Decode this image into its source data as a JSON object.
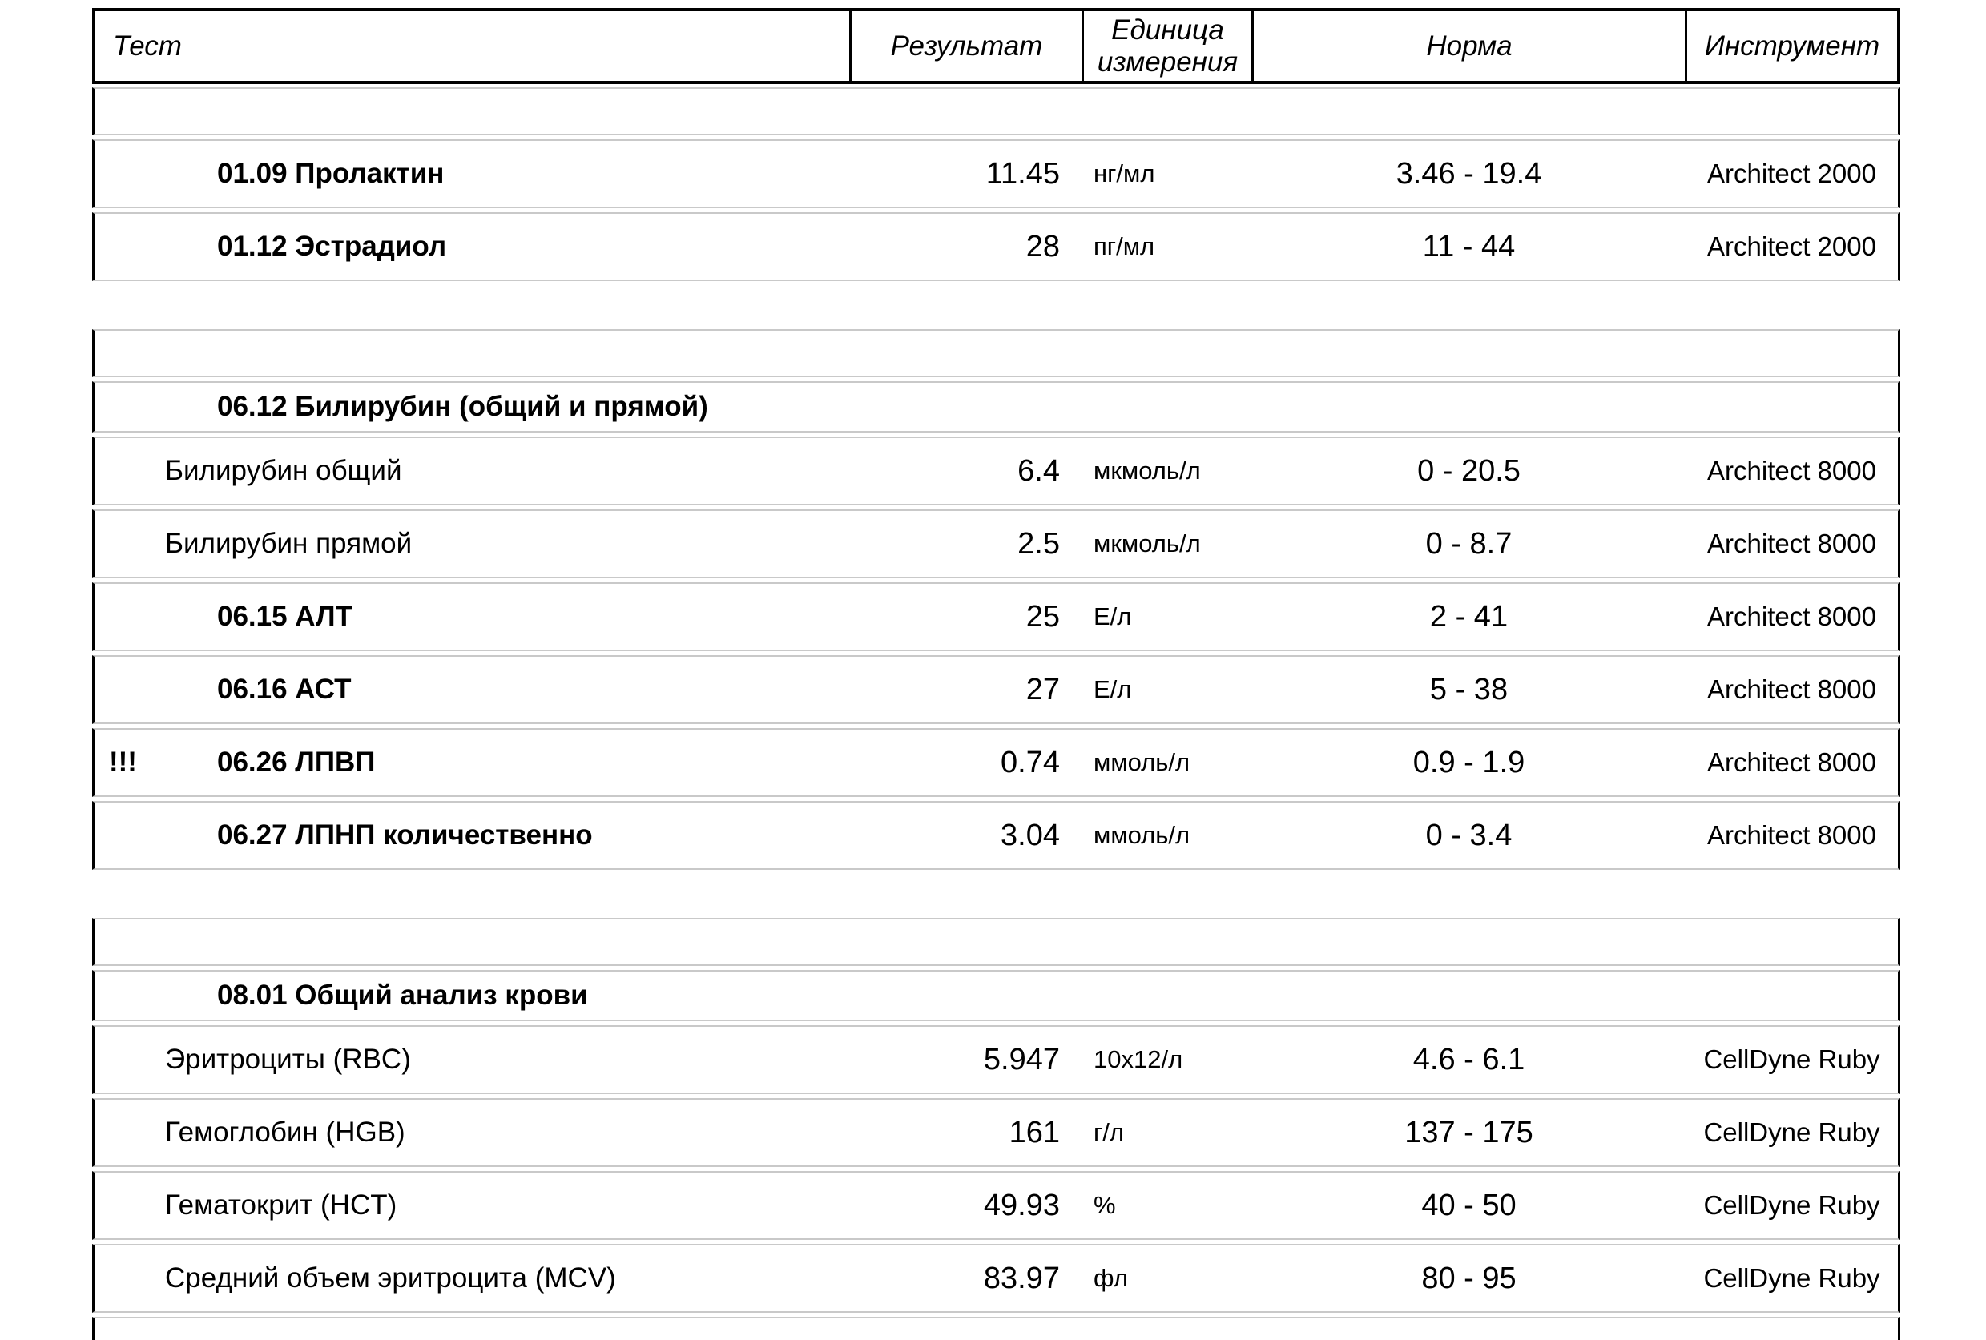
{
  "header": {
    "columns": [
      "Тест",
      "Результат",
      "Единица измерения",
      "Норма",
      "Инструмент"
    ]
  },
  "colors": {
    "text": "#000000",
    "header_border": "#000000",
    "row_side_border": "#000000",
    "row_separator": "#c9c9c9",
    "background": "#ffffff"
  },
  "groups": [
    {
      "rows": [
        {
          "type": "empty"
        },
        {
          "type": "data",
          "flag": "",
          "bold": true,
          "name": "01.09 Пролактин",
          "result": "11.45",
          "unit": "нг/мл",
          "norm": "3.46 - 19.4",
          "instrument": "Architect 2000"
        },
        {
          "type": "data",
          "flag": "",
          "bold": true,
          "name": "01.12 Эстрадиол",
          "result": "28",
          "unit": "пг/мл",
          "norm": "11 - 44",
          "instrument": "Architect 2000"
        }
      ]
    },
    {
      "rows": [
        {
          "type": "empty"
        },
        {
          "type": "section",
          "name": "06.12 Билирубин (общий и прямой)"
        },
        {
          "type": "data",
          "flag": "",
          "bold": false,
          "name": "Билирубин общий",
          "result": "6.4",
          "unit": "мкмоль/л",
          "norm": "0 - 20.5",
          "instrument": "Architect 8000"
        },
        {
          "type": "data",
          "flag": "",
          "bold": false,
          "name": "Билирубин прямой",
          "result": "2.5",
          "unit": "мкмоль/л",
          "norm": "0 - 8.7",
          "instrument": "Architect 8000"
        },
        {
          "type": "data",
          "flag": "",
          "bold": true,
          "name": "06.15 АЛТ",
          "result": "25",
          "unit": "Е/л",
          "norm": "2 - 41",
          "instrument": "Architect 8000"
        },
        {
          "type": "data",
          "flag": "",
          "bold": true,
          "name": "06.16 АСТ",
          "result": "27",
          "unit": "Е/л",
          "norm": "5 - 38",
          "instrument": "Architect 8000"
        },
        {
          "type": "data",
          "flag": "!!!",
          "bold": true,
          "name": "06.26 ЛПВП",
          "result": "0.74",
          "unit": "ммоль/л",
          "norm": "0.9 - 1.9",
          "instrument": "Architect 8000"
        },
        {
          "type": "data",
          "flag": "",
          "bold": true,
          "name": "06.27 ЛПНП количественно",
          "result": "3.04",
          "unit": "ммоль/л",
          "norm": "0 - 3.4",
          "instrument": "Architect 8000"
        }
      ]
    },
    {
      "rows": [
        {
          "type": "empty"
        },
        {
          "type": "section",
          "name": "08.01 Общий анализ крови"
        },
        {
          "type": "data",
          "flag": "",
          "bold": false,
          "name": "Эритроциты (RBC)",
          "result": "5.947",
          "unit": "10x12/л",
          "norm": "4.6 - 6.1",
          "instrument": "CellDyne Ruby"
        },
        {
          "type": "data",
          "flag": "",
          "bold": false,
          "name": "Гемоглобин (HGB)",
          "result": "161",
          "unit": "г/л",
          "norm": "137 - 175",
          "instrument": "CellDyne Ruby"
        },
        {
          "type": "data",
          "flag": "",
          "bold": false,
          "name": "Гематокрит (HCT)",
          "result": "49.93",
          "unit": "%",
          "norm": "40 - 50",
          "instrument": "CellDyne Ruby"
        },
        {
          "type": "data",
          "flag": "",
          "bold": false,
          "name": "Средний объем эритроцита (MCV)",
          "result": "83.97",
          "unit": "фл",
          "norm": "80 - 95",
          "instrument": "CellDyne Ruby"
        }
      ]
    }
  ]
}
